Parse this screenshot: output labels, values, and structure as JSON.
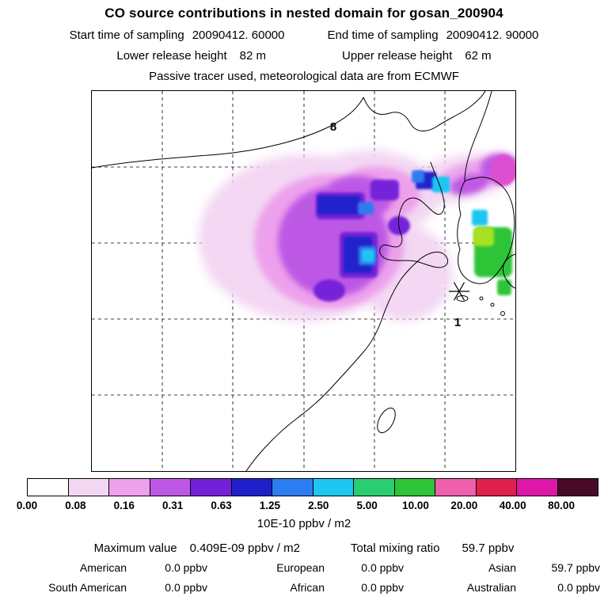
{
  "title": "CO  source contributions in nested domain for gosan_200904",
  "header": {
    "sampling": {
      "start_label": "Start time of sampling",
      "start_value": "20090412. 60000",
      "end_label": "End time of sampling",
      "end_value": "20090412. 90000"
    },
    "release": {
      "lower_label": "Lower release height",
      "lower_value": "82 m",
      "upper_label": "Upper release height",
      "upper_value": "62 m"
    },
    "note": "Passive tracer used, meteorological data are from ECMWF"
  },
  "map": {
    "labels": [
      "8",
      "1"
    ],
    "marker": "asterisk (receptor location)"
  },
  "chart_data": {
    "type": "heatmap",
    "title": "CO source contributions in nested domain for gosan_200904",
    "description": "Gridded source-contribution plume over an East Asia coastline map; receptor marked with an asterisk; dashed lat/lon gridlines; map point labels 8 and 1",
    "colorbar": {
      "units": "10E-10 ppbv / m2",
      "levels": [
        "0.00",
        "0.08",
        "0.16",
        "0.31",
        "0.63",
        "1.25",
        "2.50",
        "5.00",
        "10.00",
        "20.00",
        "40.00",
        "80.00"
      ],
      "colors": [
        "#ffffff",
        "#f5d7f3",
        "#eda1ec",
        "#bd58e5",
        "#7420d8",
        "#2020cb",
        "#2d7cf0",
        "#1fc6f2",
        "#2acd72",
        "#2ec437",
        "#ee5fae",
        "#e2204e",
        "#dd17a6",
        "#470b28"
      ],
      "orientation": "horizontal"
    },
    "maximum_value": "0.409E-09 ppbv / m2",
    "total_mixing_ratio_ppbv": 59.7,
    "contributions_ppbv": {
      "American": 0.0,
      "European": 0.0,
      "Asian": 59.7,
      "South American": 0.0,
      "African": 0.0,
      "Australian": 0.0
    }
  },
  "stats": {
    "max_label": "Maximum value",
    "max_value": "0.409E-09 ppbv / m2",
    "total_label": "Total mixing ratio",
    "total_value": "59.7 ppbv",
    "contributions": [
      {
        "region": "American",
        "value": "0.0 ppbv"
      },
      {
        "region": "European",
        "value": "0.0 ppbv"
      },
      {
        "region": "Asian",
        "value": "59.7 ppbv"
      },
      {
        "region": "South American",
        "value": "0.0 ppbv"
      },
      {
        "region": "African",
        "value": "0.0 ppbv"
      },
      {
        "region": "Australian",
        "value": "0.0 ppbv"
      }
    ]
  }
}
